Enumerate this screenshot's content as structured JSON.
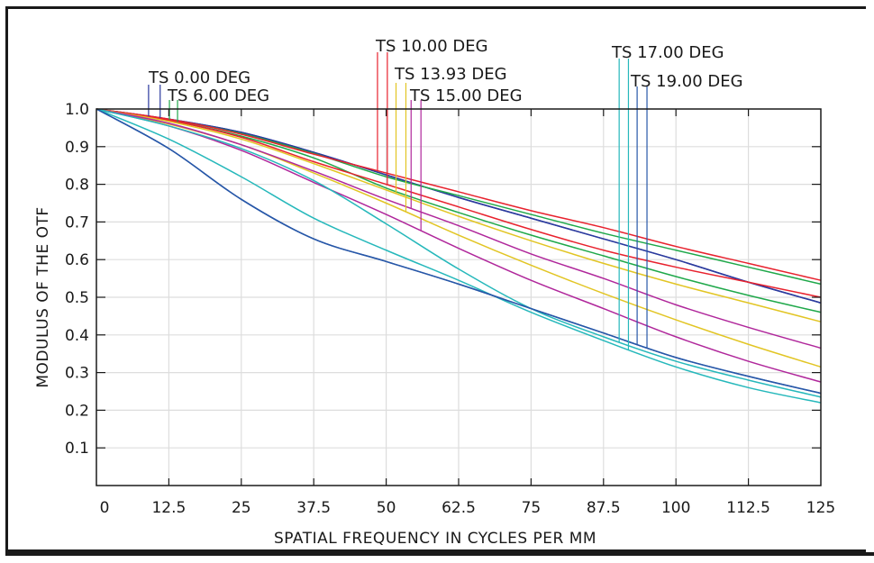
{
  "chart_data": {
    "type": "line",
    "title": "",
    "xlabel": "SPATIAL FREQUENCY IN CYCLES PER MM",
    "ylabel": "MODULUS OF THE OTF",
    "xlim": [
      0,
      125
    ],
    "ylim": [
      0,
      1.0
    ],
    "grid": true,
    "x_ticks": [
      "0",
      "12.5",
      "25",
      "37.5",
      "50",
      "62.5",
      "75",
      "87.5",
      "100",
      "112.5",
      "125"
    ],
    "x_tick_values": [
      0,
      12.5,
      25,
      37.5,
      50,
      62.5,
      75,
      87.5,
      100,
      112.5,
      125
    ],
    "y_ticks": [
      "0.1",
      "0.2",
      "0.3",
      "0.4",
      "0.5",
      "0.6",
      "0.7",
      "0.8",
      "0.9",
      "1.0"
    ],
    "y_tick_values": [
      0.1,
      0.2,
      0.3,
      0.4,
      0.5,
      0.6,
      0.7,
      0.8,
      0.9,
      1.0
    ],
    "x": [
      0,
      12.5,
      25,
      37.5,
      50,
      62.5,
      75,
      87.5,
      100,
      112.5,
      125
    ],
    "legend": [
      {
        "label": "TS 0.00 DEG",
        "color": "#2b3a9e",
        "marker_x": [
          9,
          11
        ]
      },
      {
        "label": "TS 6.00 DEG",
        "color": "#1fa84a",
        "marker_x": [
          12.6,
          14
        ]
      },
      {
        "label": "TS 10.00 DEG",
        "color": "#e8222e",
        "marker_x": [
          48.5,
          50.2
        ]
      },
      {
        "label": "TS 13.93 DEG",
        "color": "#e2c524",
        "marker_x": [
          51.7,
          53.4
        ]
      },
      {
        "label": "TS 15.00 DEG",
        "color": "#b0279b",
        "marker_x": [
          54.3,
          56
        ]
      },
      {
        "label": "TS 17.00 DEG",
        "color": "#26b8bb",
        "marker_x": [
          90.2,
          91.8
        ]
      },
      {
        "label": "TS 19.00 DEG",
        "color": "#2757a8",
        "marker_x": [
          93.3,
          95
        ]
      }
    ],
    "series": [
      {
        "name": "TS 0.00 DEG (T)",
        "color": "#2b3a9e",
        "values": [
          1.0,
          0.973,
          0.938,
          0.885,
          0.825,
          0.765,
          0.71,
          0.655,
          0.6,
          0.54,
          0.485
        ]
      },
      {
        "name": "TS 0.00 DEG (S)",
        "color": "#2b3a9e",
        "values": [
          1.0,
          0.973,
          0.938,
          0.885,
          0.825,
          0.765,
          0.71,
          0.655,
          0.6,
          0.54,
          0.485
        ]
      },
      {
        "name": "TS 6.00 DEG (T)",
        "color": "#1fa84a",
        "values": [
          1.0,
          0.972,
          0.935,
          0.882,
          0.82,
          0.77,
          0.72,
          0.67,
          0.625,
          0.58,
          0.535
        ]
      },
      {
        "name": "TS 6.00 DEG (S)",
        "color": "#1fa84a",
        "values": [
          1.0,
          0.97,
          0.928,
          0.87,
          0.79,
          0.725,
          0.665,
          0.61,
          0.555,
          0.505,
          0.46
        ]
      },
      {
        "name": "TS 10.00 DEG (T)",
        "color": "#e8222e",
        "values": [
          1.0,
          0.973,
          0.933,
          0.88,
          0.83,
          0.78,
          0.73,
          0.685,
          0.635,
          0.59,
          0.545
        ]
      },
      {
        "name": "TS 10.00 DEG (S)",
        "color": "#e8222e",
        "values": [
          1.0,
          0.97,
          0.925,
          0.86,
          0.8,
          0.74,
          0.68,
          0.625,
          0.58,
          0.54,
          0.5
        ]
      },
      {
        "name": "TS 13.93 DEG (T)",
        "color": "#e2c524",
        "values": [
          1.0,
          0.967,
          0.92,
          0.855,
          0.785,
          0.715,
          0.65,
          0.59,
          0.535,
          0.485,
          0.435
        ]
      },
      {
        "name": "TS 13.93 DEG (S)",
        "color": "#e2c524",
        "values": [
          1.0,
          0.96,
          0.905,
          0.83,
          0.75,
          0.665,
          0.585,
          0.51,
          0.44,
          0.375,
          0.315
        ]
      },
      {
        "name": "TS 15.00 DEG (T)",
        "color": "#b0279b",
        "values": [
          1.0,
          0.962,
          0.905,
          0.835,
          0.76,
          0.69,
          0.615,
          0.55,
          0.48,
          0.42,
          0.365
        ]
      },
      {
        "name": "TS 15.00 DEG (S)",
        "color": "#b0279b",
        "values": [
          1.0,
          0.955,
          0.89,
          0.805,
          0.72,
          0.63,
          0.545,
          0.47,
          0.395,
          0.33,
          0.275
        ]
      },
      {
        "name": "TS 17.00 DEG (T)",
        "color": "#26b8bb",
        "values": [
          1.0,
          0.955,
          0.895,
          0.81,
          0.695,
          0.575,
          0.47,
          0.395,
          0.33,
          0.28,
          0.235
        ]
      },
      {
        "name": "TS 17.00 DEG (S)",
        "color": "#26b8bb",
        "values": [
          1.0,
          0.92,
          0.82,
          0.71,
          0.625,
          0.545,
          0.46,
          0.385,
          0.315,
          0.26,
          0.22
        ]
      },
      {
        "name": "TS 19.00 DEG (T)",
        "color": "#2757a8",
        "values": [
          1.0,
          0.895,
          0.76,
          0.655,
          0.595,
          0.535,
          0.47,
          0.405,
          0.34,
          0.29,
          0.245
        ]
      },
      {
        "name": "TS 19.00 DEG (S)",
        "color": "#2757a8",
        "values": [
          1.0,
          0.895,
          0.76,
          0.655,
          0.595,
          0.535,
          0.47,
          0.405,
          0.34,
          0.29,
          0.245
        ]
      }
    ]
  }
}
